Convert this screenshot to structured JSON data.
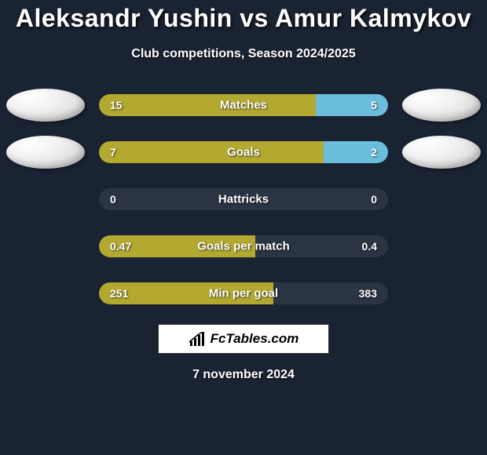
{
  "title": "Aleksandr Yushin vs Amur Kalmykov",
  "subtitle": "Club competitions, Season 2024/2025",
  "date": "7 november 2024",
  "branding": "FcTables.com",
  "colors": {
    "background": "#1a2332",
    "bar_left": "#b3a931",
    "bar_right": "#6bbedb",
    "bar_empty": "rgba(255,255,255,0.08)",
    "bubble_gradient_start": "#ffffff",
    "bubble_gradient_end": "#c8c8c8",
    "text": "#ffffff"
  },
  "stats": [
    {
      "label": "Matches",
      "left_value": "15",
      "right_value": "5",
      "left_pct": 75,
      "right_pct": 25,
      "show_bubbles": true
    },
    {
      "label": "Goals",
      "left_value": "7",
      "right_value": "2",
      "left_pct": 77.8,
      "right_pct": 22.2,
      "show_bubbles": true
    },
    {
      "label": "Hattricks",
      "left_value": "0",
      "right_value": "0",
      "left_pct": 0,
      "right_pct": 0,
      "show_bubbles": false
    },
    {
      "label": "Goals per match",
      "left_value": "0.47",
      "right_value": "0.4",
      "left_pct": 54,
      "right_pct": 0,
      "show_bubbles": false
    },
    {
      "label": "Min per goal",
      "left_value": "251",
      "right_value": "383",
      "left_pct": 60.4,
      "right_pct": 0,
      "show_bubbles": false
    }
  ]
}
